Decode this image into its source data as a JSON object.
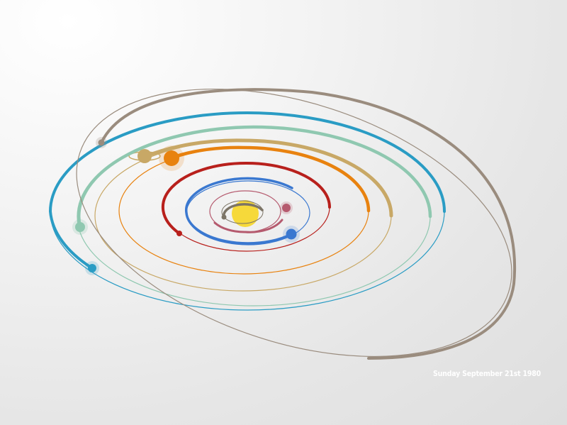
{
  "date_label": "Sunday September 21st 1980",
  "planets": [
    {
      "name": "mercury",
      "color": "#7c7466"
    },
    {
      "name": "venus",
      "color": "#b55a6e"
    },
    {
      "name": "earth",
      "color": "#3a78d0"
    },
    {
      "name": "mars",
      "color": "#b8201c"
    },
    {
      "name": "jupiter",
      "color": "#e8820f"
    },
    {
      "name": "saturn",
      "color": "#c8a866"
    },
    {
      "name": "uranus",
      "color": "#8fc8b0"
    },
    {
      "name": "neptune",
      "color": "#2a9cc4"
    },
    {
      "name": "pluto",
      "color": "#9a8c7e"
    }
  ],
  "sun": {
    "color": "#f6d93a"
  }
}
